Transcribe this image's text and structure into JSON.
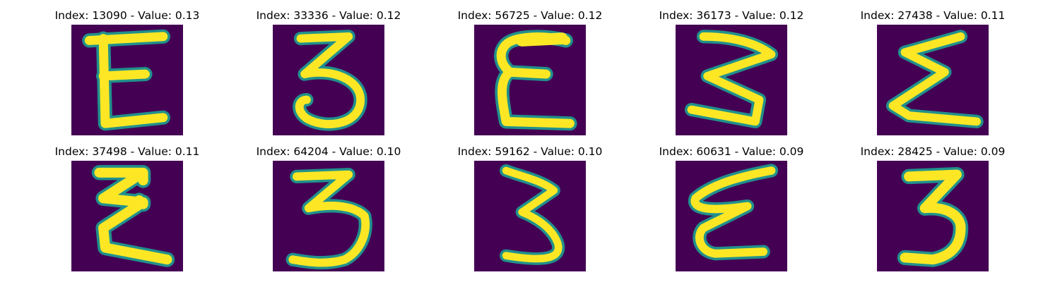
{
  "figure": {
    "colors": {
      "background": "#440154",
      "stroke": "#fde725",
      "edge": "#21918c"
    },
    "panels": [
      {
        "title": "Index: 13090 - Value: 0.13",
        "glyph": "E"
      },
      {
        "title": "Index: 33336 - Value: 0.12",
        "glyph": "3"
      },
      {
        "title": "Index: 56725 - Value: 0.12",
        "glyph": "E"
      },
      {
        "title": "Index: 36173 - Value: 0.12",
        "glyph": "sigma"
      },
      {
        "title": "Index: 27438 - Value: 0.11",
        "glyph": "sigma"
      },
      {
        "title": "Index: 37498 - Value: 0.11",
        "glyph": "sigma"
      },
      {
        "title": "Index: 64204 - Value: 0.10",
        "glyph": "3"
      },
      {
        "title": "Index: 59162 - Value: 0.10",
        "glyph": "3"
      },
      {
        "title": "Index: 60631 - Value: 0.09",
        "glyph": "sigma"
      },
      {
        "title": "Index: 28425 - Value: 0.09",
        "glyph": "3"
      }
    ]
  }
}
